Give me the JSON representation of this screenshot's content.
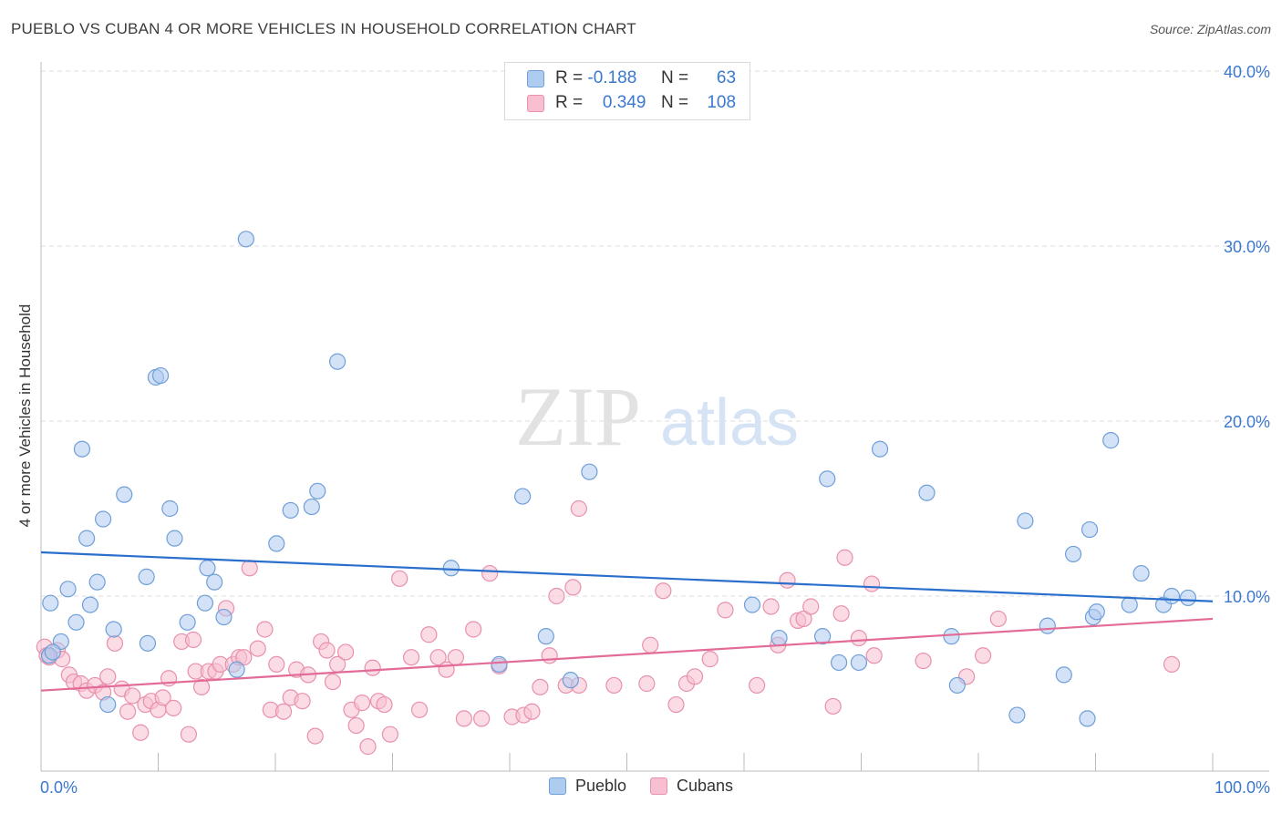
{
  "title": "PUEBLO VS CUBAN 4 OR MORE VEHICLES IN HOUSEHOLD CORRELATION CHART",
  "source": "Source: ZipAtlas.com",
  "watermark": {
    "zip": "ZIP",
    "atlas": "atlas"
  },
  "legend_top": {
    "rows": [
      {
        "r_label": "R =",
        "r_value": "-0.188",
        "n_label": "N =",
        "n_value": "63"
      },
      {
        "r_label": "R =",
        "r_value": "0.349",
        "n_label": "N =",
        "n_value": "108"
      }
    ]
  },
  "bottom_legend": [
    "Pueblo",
    "Cubans"
  ],
  "colors": {
    "pueblo_fill": "#aecbf0",
    "pueblo_stroke": "#6f9fd8",
    "pueblo_line": "#2a6fcc",
    "cubans_fill": "#f7bfd0",
    "cubans_stroke": "#e890ad",
    "cubans_line": "#e36b98",
    "tick_label": "#3a78d0",
    "grid": "#dddddd"
  },
  "chart_data": {
    "type": "scatter",
    "title": "PUEBLO VS CUBAN 4 OR MORE VEHICLES IN HOUSEHOLD CORRELATION CHART",
    "xlabel": "",
    "ylabel": "4 or more Vehicles in Household",
    "xlim": [
      0,
      100
    ],
    "ylim": [
      0,
      40
    ],
    "x_tick_labels": [
      "0.0%",
      "100.0%"
    ],
    "y_ticks": [
      10,
      20,
      30,
      40
    ],
    "y_tick_labels": [
      "10.0%",
      "20.0%",
      "30.0%",
      "40.0%"
    ],
    "grid": true,
    "legend_position": "bottom-center",
    "series": [
      {
        "name": "Pueblo",
        "stats": {
          "R": -0.188,
          "N": 63
        },
        "trend": {
          "x": [
            0,
            100
          ],
          "y": [
            12.5,
            9.7
          ]
        },
        "points": [
          [
            17.5,
            30.4
          ],
          [
            9.8,
            22.5
          ],
          [
            10.2,
            22.6
          ],
          [
            25.3,
            23.4
          ],
          [
            3.5,
            18.4
          ],
          [
            46.8,
            17.1
          ],
          [
            71.6,
            18.4
          ],
          [
            91.3,
            18.9
          ],
          [
            67.1,
            16.7
          ],
          [
            7.1,
            15.8
          ],
          [
            11.0,
            15.0
          ],
          [
            23.6,
            16.0
          ],
          [
            21.3,
            14.9
          ],
          [
            23.1,
            15.1
          ],
          [
            41.1,
            15.7
          ],
          [
            75.6,
            15.9
          ],
          [
            5.3,
            14.4
          ],
          [
            3.9,
            13.3
          ],
          [
            11.4,
            13.3
          ],
          [
            20.1,
            13.0
          ],
          [
            84.0,
            14.3
          ],
          [
            89.5,
            13.8
          ],
          [
            88.1,
            12.4
          ],
          [
            0.8,
            9.6
          ],
          [
            2.3,
            10.4
          ],
          [
            4.8,
            10.8
          ],
          [
            9.0,
            11.1
          ],
          [
            14.2,
            11.6
          ],
          [
            14.8,
            10.8
          ],
          [
            35.0,
            11.6
          ],
          [
            93.9,
            11.3
          ],
          [
            4.2,
            9.5
          ],
          [
            14.0,
            9.6
          ],
          [
            15.6,
            8.8
          ],
          [
            3.0,
            8.5
          ],
          [
            12.5,
            8.5
          ],
          [
            6.2,
            8.1
          ],
          [
            1.7,
            7.4
          ],
          [
            9.1,
            7.3
          ],
          [
            16.7,
            5.8
          ],
          [
            60.7,
            9.5
          ],
          [
            63.0,
            7.6
          ],
          [
            66.7,
            7.7
          ],
          [
            77.7,
            7.7
          ],
          [
            85.9,
            8.3
          ],
          [
            92.9,
            9.5
          ],
          [
            95.8,
            9.5
          ],
          [
            96.5,
            10.0
          ],
          [
            97.9,
            9.9
          ],
          [
            89.8,
            8.8
          ],
          [
            90.1,
            9.1
          ],
          [
            68.1,
            6.2
          ],
          [
            69.8,
            6.2
          ],
          [
            39.1,
            6.1
          ],
          [
            43.1,
            7.7
          ],
          [
            45.2,
            5.2
          ],
          [
            78.2,
            4.9
          ],
          [
            87.3,
            5.5
          ],
          [
            5.7,
            3.8
          ],
          [
            83.3,
            3.2
          ],
          [
            89.3,
            3.0
          ],
          [
            0.7,
            6.6
          ],
          [
            1.0,
            6.8
          ]
        ]
      },
      {
        "name": "Cubans",
        "stats": {
          "R": 0.349,
          "N": 108
        },
        "trend": {
          "x": [
            0,
            100
          ],
          "y": [
            4.6,
            8.7
          ]
        },
        "points": [
          [
            0.3,
            7.1
          ],
          [
            0.7,
            6.5
          ],
          [
            1.4,
            6.9
          ],
          [
            1.8,
            6.4
          ],
          [
            2.4,
            5.5
          ],
          [
            2.8,
            5.1
          ],
          [
            3.4,
            5.0
          ],
          [
            3.9,
            4.6
          ],
          [
            4.6,
            4.9
          ],
          [
            5.3,
            4.5
          ],
          [
            5.7,
            5.4
          ],
          [
            6.3,
            7.3
          ],
          [
            6.9,
            4.7
          ],
          [
            7.4,
            3.4
          ],
          [
            7.8,
            4.3
          ],
          [
            8.5,
            2.2
          ],
          [
            8.9,
            3.8
          ],
          [
            9.4,
            4.0
          ],
          [
            10.0,
            3.5
          ],
          [
            10.4,
            4.2
          ],
          [
            10.9,
            5.3
          ],
          [
            11.3,
            3.6
          ],
          [
            12.0,
            7.4
          ],
          [
            12.6,
            2.1
          ],
          [
            13.0,
            7.5
          ],
          [
            13.2,
            5.7
          ],
          [
            13.7,
            4.8
          ],
          [
            14.3,
            5.7
          ],
          [
            14.9,
            5.7
          ],
          [
            15.3,
            6.1
          ],
          [
            15.8,
            9.3
          ],
          [
            16.4,
            6.1
          ],
          [
            16.9,
            6.5
          ],
          [
            17.3,
            6.5
          ],
          [
            17.8,
            11.6
          ],
          [
            18.5,
            7.0
          ],
          [
            19.1,
            8.1
          ],
          [
            19.6,
            3.5
          ],
          [
            20.1,
            6.1
          ],
          [
            20.7,
            3.4
          ],
          [
            21.3,
            4.2
          ],
          [
            21.8,
            5.8
          ],
          [
            22.3,
            4.0
          ],
          [
            22.8,
            5.5
          ],
          [
            23.4,
            2.0
          ],
          [
            23.9,
            7.4
          ],
          [
            24.4,
            6.9
          ],
          [
            24.9,
            5.1
          ],
          [
            25.3,
            6.1
          ],
          [
            26.0,
            6.8
          ],
          [
            26.5,
            3.5
          ],
          [
            26.9,
            2.6
          ],
          [
            27.4,
            3.9
          ],
          [
            27.9,
            1.4
          ],
          [
            28.3,
            5.9
          ],
          [
            28.8,
            4.0
          ],
          [
            29.3,
            3.8
          ],
          [
            29.8,
            2.1
          ],
          [
            30.6,
            11.0
          ],
          [
            31.6,
            6.5
          ],
          [
            32.3,
            3.5
          ],
          [
            33.1,
            7.8
          ],
          [
            33.9,
            6.5
          ],
          [
            34.6,
            5.8
          ],
          [
            35.4,
            6.5
          ],
          [
            36.1,
            3.0
          ],
          [
            36.9,
            8.1
          ],
          [
            37.6,
            3.0
          ],
          [
            38.3,
            11.3
          ],
          [
            39.1,
            6.0
          ],
          [
            40.2,
            3.1
          ],
          [
            41.2,
            3.2
          ],
          [
            41.9,
            3.4
          ],
          [
            42.6,
            4.8
          ],
          [
            43.4,
            6.6
          ],
          [
            44.0,
            10.0
          ],
          [
            44.8,
            4.9
          ],
          [
            45.4,
            10.5
          ],
          [
            45.9,
            4.9
          ],
          [
            45.9,
            15.0
          ],
          [
            48.9,
            4.9
          ],
          [
            51.7,
            5.0
          ],
          [
            52.0,
            7.2
          ],
          [
            53.1,
            10.3
          ],
          [
            54.2,
            3.8
          ],
          [
            55.1,
            5.0
          ],
          [
            55.8,
            5.4
          ],
          [
            57.1,
            6.4
          ],
          [
            58.4,
            9.2
          ],
          [
            61.1,
            4.9
          ],
          [
            62.3,
            9.4
          ],
          [
            62.9,
            7.2
          ],
          [
            63.7,
            10.9
          ],
          [
            64.6,
            8.6
          ],
          [
            65.1,
            8.7
          ],
          [
            65.7,
            9.4
          ],
          [
            67.6,
            3.7
          ],
          [
            68.3,
            9.0
          ],
          [
            68.6,
            12.2
          ],
          [
            69.8,
            7.6
          ],
          [
            70.9,
            10.7
          ],
          [
            71.1,
            6.6
          ],
          [
            75.3,
            6.3
          ],
          [
            79.0,
            5.4
          ],
          [
            80.4,
            6.6
          ],
          [
            81.7,
            8.7
          ],
          [
            96.5,
            6.1
          ],
          [
            0.5,
            6.6
          ]
        ]
      }
    ]
  }
}
